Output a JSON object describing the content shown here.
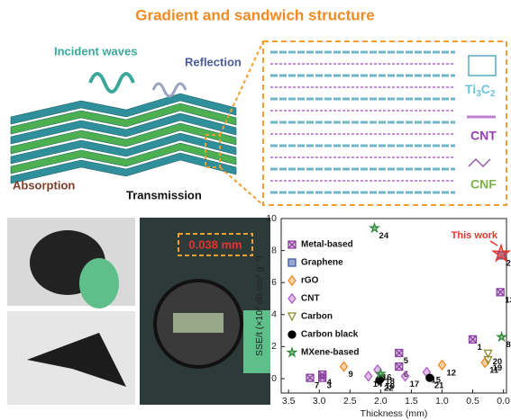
{
  "title": "Gradient and sandwich structure",
  "schematic": {
    "incident": "Incident waves",
    "reflection": "Reflection",
    "absorption": "Absorption",
    "transmission": "Transmission",
    "legend": [
      {
        "parts": [
          "Ti",
          "3",
          "C",
          "2"
        ]
      },
      {
        "parts": [
          "CNT"
        ]
      },
      {
        "parts": [
          "CNF"
        ]
      }
    ]
  },
  "photo_label": "0.038 mm",
  "chart_data": {
    "type": "scatter",
    "xlabel": "Thickness (mm)",
    "ylabel": "SSE/t (×10³ dB cm² g⁻¹)",
    "xlim": [
      3.62,
      -0.05
    ],
    "ylim": [
      -0.9,
      10
    ],
    "xticks": [
      3.5,
      {
        "value": 3,
        "label": "3.0"
      },
      2.5,
      {
        "value": 2,
        "label": "2.0"
      },
      1.5,
      {
        "value": 1,
        "label": "1.0"
      },
      0.5,
      {
        "value": 0,
        "label": "0.0"
      }
    ],
    "yticks": [
      0,
      2,
      4,
      6,
      8,
      10
    ],
    "legend_position": "upper left",
    "annotation": "This work",
    "series": [
      {
        "name": "Metal-based",
        "color": "#8b3fa0",
        "marker": "x-box",
        "legend": true,
        "x": [
          3.15,
          2.95,
          2.95,
          1.7,
          1.7,
          0.5,
          0.05
        ],
        "values": [
          0.05,
          0.05,
          0.25,
          1.6,
          0.75,
          2.45,
          5.4
        ],
        "labels": [
          "7",
          "3",
          "4",
          "5",
          "6",
          "1",
          "13"
        ]
      },
      {
        "name": "Graphene",
        "color": "#3b5ba9",
        "marker": "square",
        "legend": true,
        "x": [
          0.03
        ],
        "values": [
          7.7
        ],
        "labels": [
          "2"
        ]
      },
      {
        "name": "rGO",
        "color": "#f08a24",
        "marker": "diamond",
        "legend": true,
        "x": [
          2.6,
          1.0,
          0.3
        ],
        "values": [
          0.75,
          0.85,
          1.0
        ],
        "labels": [
          "9",
          "12",
          "11"
        ]
      },
      {
        "name": "CNT",
        "color": "#b15fc7",
        "marker": "diamond",
        "legend": true,
        "x": [
          2.05,
          1.25,
          1.6,
          2.2
        ],
        "values": [
          0.55,
          0.4,
          0.15,
          0.15
        ],
        "labels": [
          "16",
          "15",
          "17",
          "14"
        ]
      },
      {
        "name": "Carbon",
        "color": "#8a8a2a",
        "marker": "triangle-down",
        "legend": true,
        "x": [
          0.25,
          0.25
        ],
        "values": [
          1.55,
          1.15
        ],
        "labels": [
          "20",
          "19"
        ]
      },
      {
        "name": "Carbon black",
        "color": "#000000",
        "marker": "circle",
        "legend": true,
        "x": [
          2.0,
          1.2,
          2.02
        ],
        "values": [
          0.0,
          0.05,
          -0.1
        ],
        "labels": [
          "10",
          "21",
          "22"
        ]
      },
      {
        "name": "MXene-based",
        "color": "#2e8b3a",
        "marker": "star",
        "legend": true,
        "x": [
          2.1,
          0.03,
          2.0
        ],
        "values": [
          9.4,
          2.6,
          0.3
        ],
        "labels": [
          "24",
          "8",
          "18"
        ]
      },
      {
        "name": "This work",
        "color": "#e8322b",
        "marker": "star",
        "legend": false,
        "x": [
          0.038
        ],
        "values": [
          7.8
        ],
        "labels": [
          null
        ]
      }
    ]
  }
}
